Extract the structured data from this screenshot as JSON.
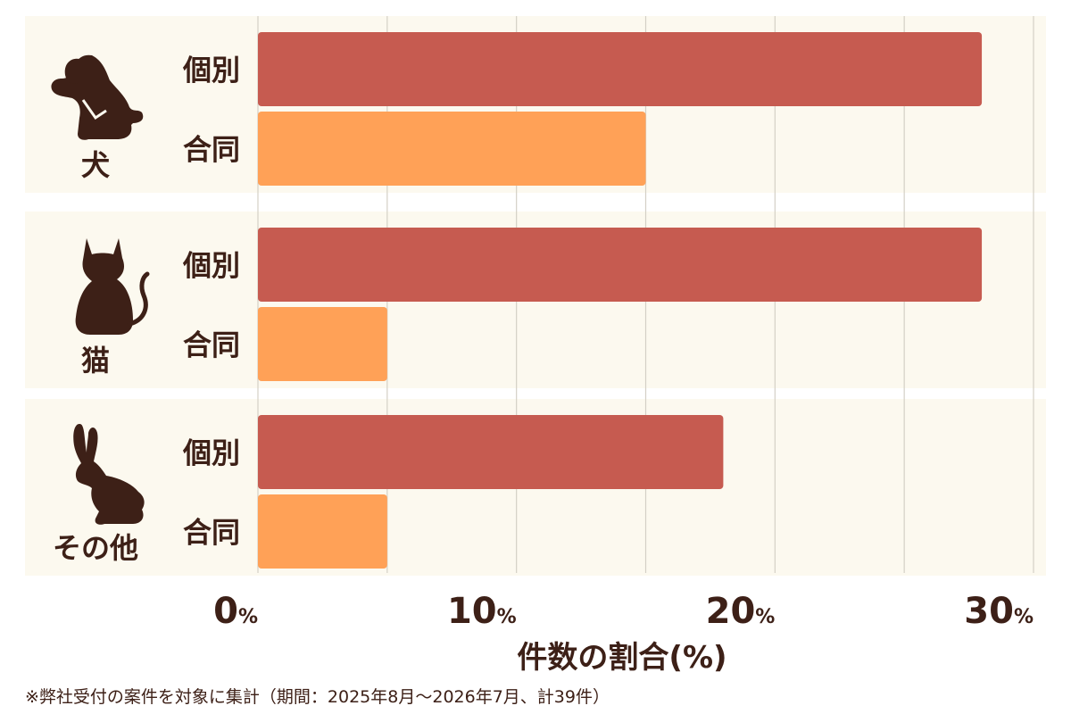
{
  "colors": {
    "panel_bg": "#fcf9ef",
    "individual": "#c65b50",
    "joint": "#ffa157",
    "text": "#3d2017",
    "grid": "#d4d0c6"
  },
  "chart_data": {
    "type": "bar",
    "orientation": "horizontal",
    "xlabel": "件数の割合(%)",
    "xlim": [
      0,
      30
    ],
    "x_ticks": [
      0,
      10,
      20,
      30
    ],
    "tick_unit": "%",
    "grid": true,
    "groups": [
      {
        "label": "犬",
        "icon": "dog-icon",
        "bars": [
          {
            "label": "個別",
            "value": 28
          },
          {
            "label": "合同",
            "value": 15
          }
        ]
      },
      {
        "label": "猫",
        "icon": "cat-icon",
        "bars": [
          {
            "label": "個別",
            "value": 28
          },
          {
            "label": "合同",
            "value": 5
          }
        ]
      },
      {
        "label": "その他",
        "icon": "rabbit-icon",
        "bars": [
          {
            "label": "個別",
            "value": 18
          },
          {
            "label": "合同",
            "value": 5
          }
        ]
      }
    ]
  },
  "footnote": "※弊社受付の案件を対象に集計（期間：2025年8月〜2026年7月、計39件）"
}
